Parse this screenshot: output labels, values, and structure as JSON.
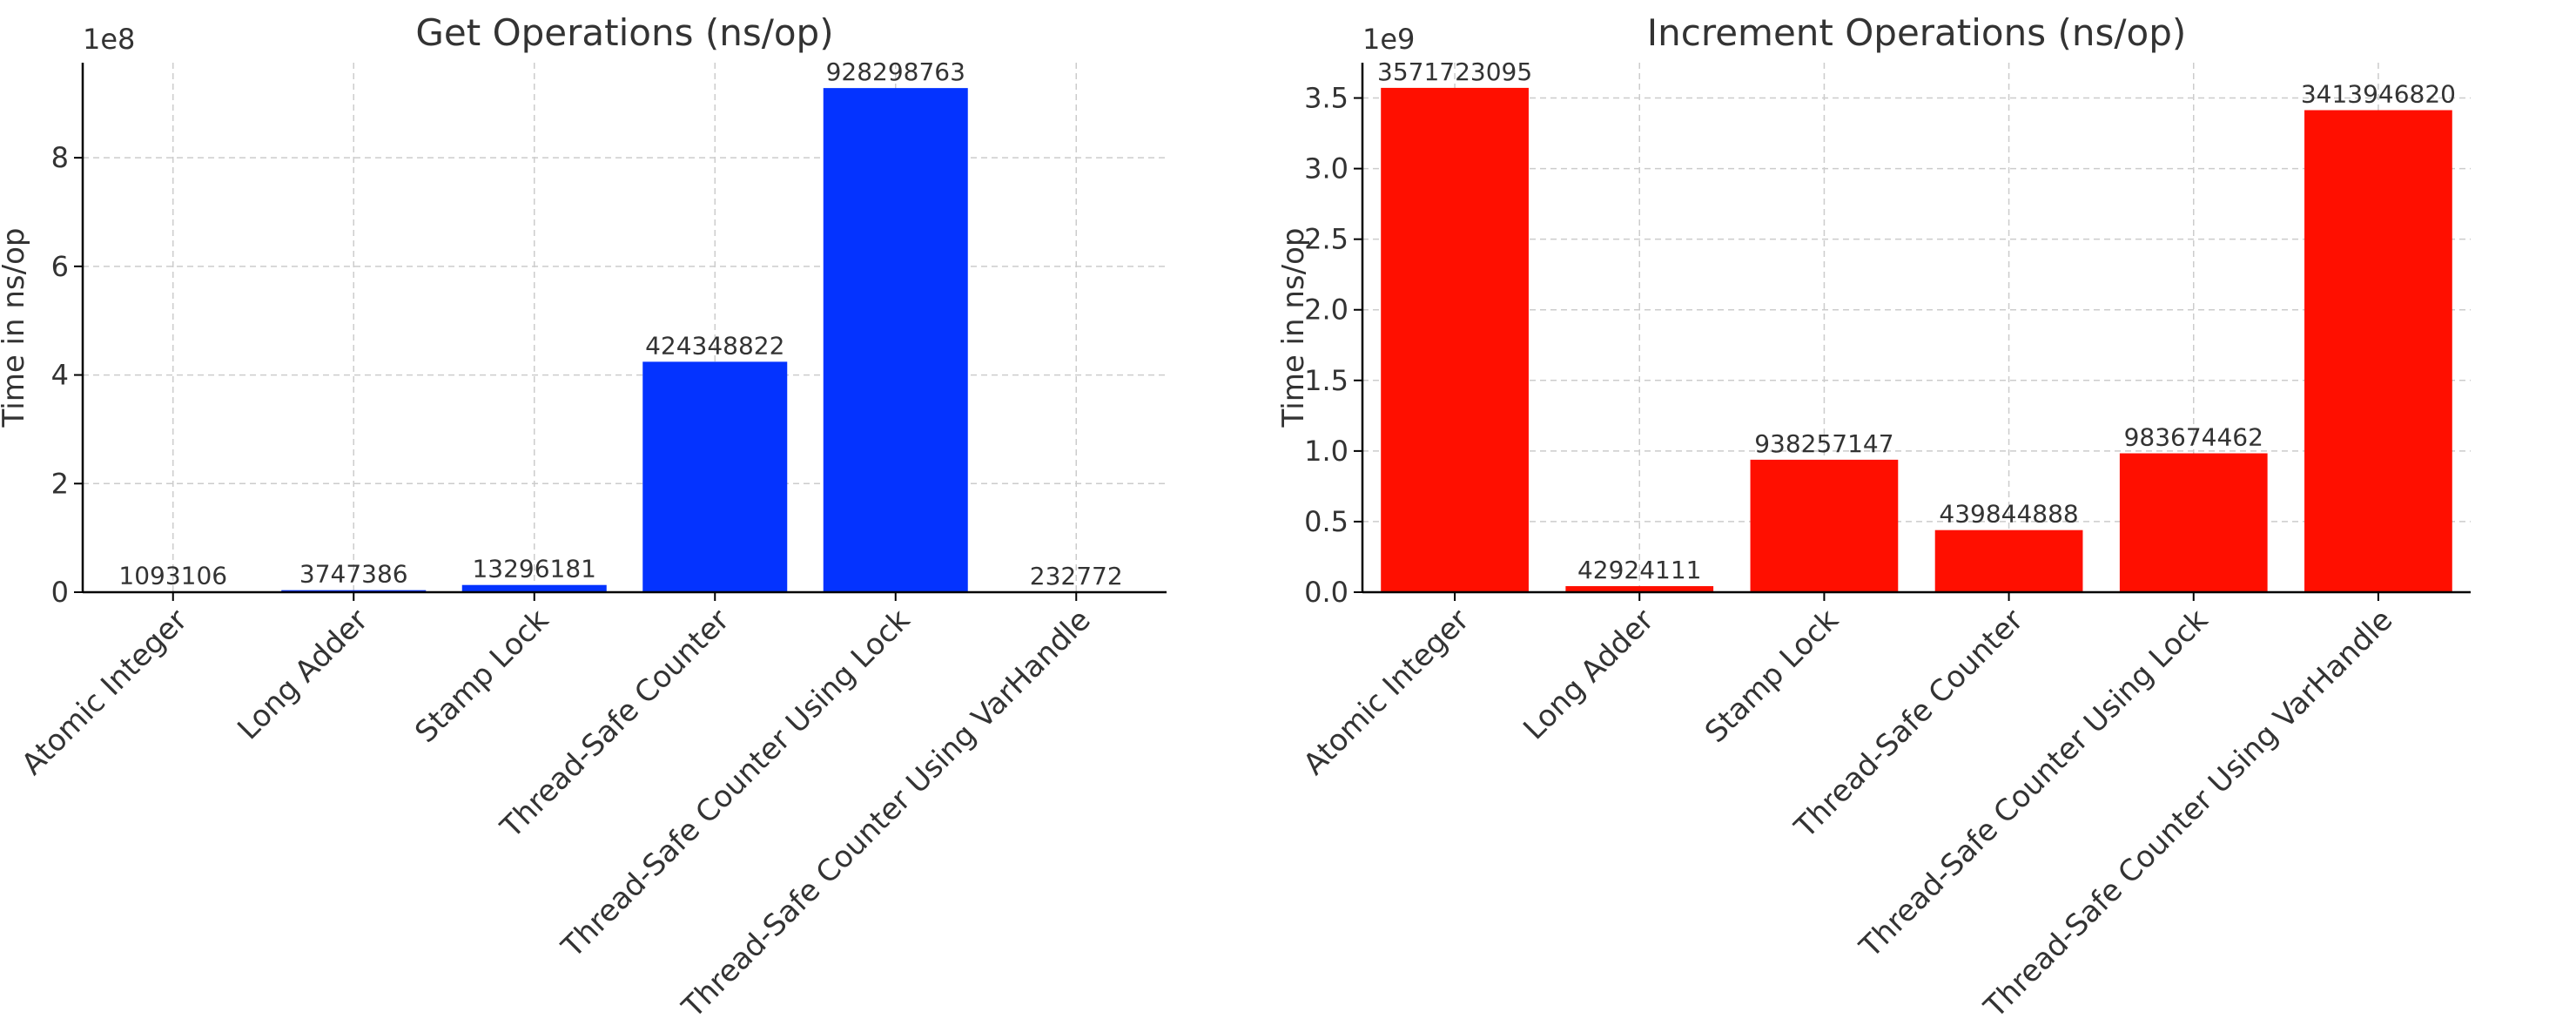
{
  "chart_data": [
    {
      "type": "bar",
      "title": "Get Operations (ns/op)",
      "xlabel": "",
      "ylabel": "Time in ns/op",
      "offset_label": "1e8",
      "scale": 100000000,
      "ylim": [
        0,
        975000000
      ],
      "yticks": [
        0,
        200000000,
        400000000,
        600000000,
        800000000
      ],
      "ytick_labels": [
        "0",
        "2",
        "4",
        "6",
        "8"
      ],
      "bar_color": "#0433ff",
      "grid": true,
      "categories": [
        "Atomic Integer",
        "Long Adder",
        "Stamp Lock",
        "Thread-Safe Counter",
        "Thread-Safe Counter Using Lock",
        "Thread-Safe Counter Using VarHandle"
      ],
      "values": [
        1093106,
        3747386,
        13296181,
        424348822,
        928298763,
        232772
      ],
      "value_labels": [
        "1093106",
        "3747386",
        "13296181",
        "424348822",
        "928298763",
        "232772"
      ]
    },
    {
      "type": "bar",
      "title": "Increment Operations (ns/op)",
      "xlabel": "",
      "ylabel": "Time in ns/op",
      "offset_label": "1e9",
      "scale": 1000000000,
      "ylim": [
        0,
        3750000000
      ],
      "yticks": [
        0,
        500000000,
        1000000000,
        1500000000,
        2000000000,
        2500000000,
        3000000000,
        3500000000
      ],
      "ytick_labels": [
        "0.0",
        "0.5",
        "1.0",
        "1.5",
        "2.0",
        "2.5",
        "3.0",
        "3.5"
      ],
      "bar_color": "#ff0f00",
      "grid": true,
      "categories": [
        "Atomic Integer",
        "Long Adder",
        "Stamp Lock",
        "Thread-Safe Counter",
        "Thread-Safe Counter Using Lock",
        "Thread-Safe Counter Using VarHandle"
      ],
      "values": [
        3571723095,
        42924111,
        938257147,
        439844888,
        983674462,
        3413946820
      ],
      "value_labels": [
        "3571723095",
        "42924111",
        "938257147",
        "439844888",
        "983674462",
        "3413946820"
      ]
    }
  ]
}
